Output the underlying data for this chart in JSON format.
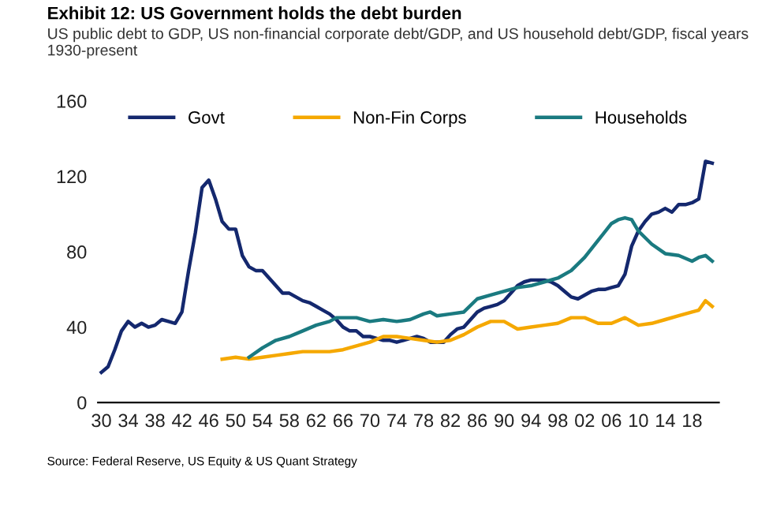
{
  "chart_data": {
    "type": "line",
    "title": "Exhibit 12: US Government holds the debt burden",
    "subtitle": "US public debt to GDP, US non-financial corporate debt/GDP, and US household debt/GDP, fiscal years 1930-present",
    "annotations": [
      "Source: Federal Reserve, US Equity & US Quant Strategy"
    ],
    "xlim": [
      1929.5,
      2022
    ],
    "xticks": [
      {
        "value": 1930,
        "label": "30"
      },
      {
        "value": 1934,
        "label": "34"
      },
      {
        "value": 1938,
        "label": "38"
      },
      {
        "value": 1942,
        "label": "42"
      },
      {
        "value": 1946,
        "label": "46"
      },
      {
        "value": 1950,
        "label": "50"
      },
      {
        "value": 1954,
        "label": "54"
      },
      {
        "value": 1958,
        "label": "58"
      },
      {
        "value": 1962,
        "label": "62"
      },
      {
        "value": 1966,
        "label": "66"
      },
      {
        "value": 1970,
        "label": "70"
      },
      {
        "value": 1974,
        "label": "74"
      },
      {
        "value": 1978,
        "label": "78"
      },
      {
        "value": 1982,
        "label": "82"
      },
      {
        "value": 1986,
        "label": "86"
      },
      {
        "value": 1990,
        "label": "90"
      },
      {
        "value": 1994,
        "label": "94"
      },
      {
        "value": 1998,
        "label": "98"
      },
      {
        "value": 2002,
        "label": "02"
      },
      {
        "value": 2006,
        "label": "06"
      },
      {
        "value": 2010,
        "label": "10"
      },
      {
        "value": 2014,
        "label": "14"
      },
      {
        "value": 2018,
        "label": "18"
      }
    ],
    "ylim": [
      0,
      160
    ],
    "yticks": [
      0,
      40,
      80,
      120,
      160
    ],
    "grid": false,
    "legend": "top",
    "marker": "none",
    "line_style": "solid",
    "series": [
      {
        "name": "Govt",
        "color": "#14286e",
        "x": [
          1930,
          1931,
          1932,
          1933,
          1934,
          1935,
          1936,
          1937,
          1938,
          1939,
          1940,
          1941,
          1942,
          1943,
          1944,
          1945,
          1946,
          1947,
          1948,
          1949,
          1950,
          1951,
          1952,
          1953,
          1954,
          1955,
          1956,
          1957,
          1958,
          1959,
          1960,
          1961,
          1962,
          1963,
          1964,
          1965,
          1966,
          1967,
          1968,
          1969,
          1970,
          1971,
          1972,
          1973,
          1974,
          1975,
          1976,
          1977,
          1978,
          1979,
          1980,
          1981,
          1982,
          1983,
          1984,
          1985,
          1986,
          1987,
          1988,
          1989,
          1990,
          1991,
          1992,
          1993,
          1994,
          1995,
          1996,
          1997,
          1998,
          1999,
          2000,
          2001,
          2002,
          2003,
          2004,
          2005,
          2006,
          2007,
          2008,
          2009,
          2010,
          2011,
          2012,
          2013,
          2014,
          2015,
          2016,
          2017,
          2018,
          2019,
          2020,
          2021
        ],
        "values": [
          16,
          19,
          28,
          38,
          43,
          40,
          42,
          40,
          41,
          44,
          43,
          42,
          48,
          70,
          90,
          114,
          118,
          108,
          96,
          92,
          92,
          78,
          72,
          70,
          70,
          66,
          62,
          58,
          58,
          56,
          54,
          53,
          51,
          49,
          47,
          44,
          40,
          38,
          38,
          35,
          35,
          34,
          33,
          33,
          32,
          33,
          34,
          35,
          34,
          32,
          32,
          32,
          36,
          39,
          40,
          44,
          48,
          50,
          51,
          52,
          54,
          58,
          62,
          64,
          65,
          65,
          65,
          64,
          62,
          59,
          56,
          55,
          57,
          59,
          60,
          60,
          61,
          62,
          68,
          83,
          91,
          96,
          100,
          101,
          103,
          101,
          105,
          105,
          106,
          108,
          128,
          127
        ]
      },
      {
        "name": "Non-Fin Corps",
        "color": "#f5a800",
        "x": [
          1948,
          1950,
          1952,
          1954,
          1956,
          1958,
          1960,
          1962,
          1964,
          1966,
          1968,
          1970,
          1972,
          1974,
          1976,
          1978,
          1980,
          1982,
          1984,
          1986,
          1988,
          1990,
          1992,
          1994,
          1996,
          1998,
          2000,
          2002,
          2004,
          2006,
          2008,
          2010,
          2012,
          2014,
          2016,
          2018,
          2019,
          2020,
          2021
        ],
        "values": [
          23,
          24,
          23,
          24,
          25,
          26,
          27,
          27,
          27,
          28,
          30,
          32,
          35,
          35,
          34,
          33,
          32,
          33,
          36,
          40,
          43,
          43,
          39,
          40,
          41,
          42,
          45,
          45,
          42,
          42,
          45,
          41,
          42,
          44,
          46,
          48,
          49,
          54,
          51
        ]
      },
      {
        "name": "Households",
        "color": "#1a7a80",
        "x": [
          1952,
          1954,
          1956,
          1958,
          1960,
          1962,
          1964,
          1965,
          1966,
          1968,
          1970,
          1972,
          1974,
          1976,
          1978,
          1979,
          1980,
          1982,
          1984,
          1986,
          1988,
          1990,
          1992,
          1994,
          1996,
          1998,
          2000,
          2002,
          2004,
          2006,
          2007,
          2008,
          2009,
          2010,
          2012,
          2014,
          2016,
          2018,
          2019,
          2020,
          2021
        ],
        "values": [
          24,
          29,
          33,
          35,
          38,
          41,
          43,
          45,
          45,
          45,
          43,
          44,
          43,
          44,
          47,
          48,
          46,
          47,
          48,
          55,
          57,
          59,
          61,
          62,
          64,
          66,
          70,
          77,
          86,
          95,
          97,
          98,
          97,
          91,
          84,
          79,
          78,
          75,
          77,
          78,
          75
        ]
      }
    ]
  }
}
